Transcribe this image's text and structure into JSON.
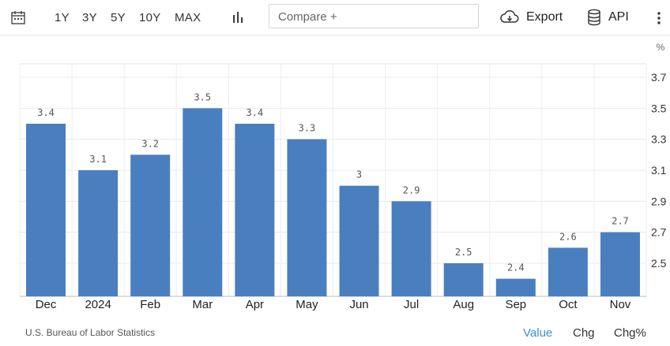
{
  "toolbar": {
    "calendar_icon": "calendar-icon",
    "ranges": [
      "1Y",
      "3Y",
      "5Y",
      "10Y",
      "MAX"
    ],
    "chart_type_icon": "bar-chart-icon",
    "compare_placeholder": "Compare +",
    "export_label": "Export",
    "export_icon": "cloud-download-icon",
    "api_label": "API",
    "api_icon": "database-icon",
    "more_icon": "kebab-menu-icon"
  },
  "chart_data": {
    "type": "bar",
    "categories": [
      "Dec",
      "2024",
      "Feb",
      "Mar",
      "Apr",
      "May",
      "Jun",
      "Jul",
      "Aug",
      "Sep",
      "Oct",
      "Nov"
    ],
    "values": [
      3.4,
      3.1,
      3.2,
      3.5,
      3.4,
      3.3,
      3,
      2.9,
      2.5,
      2.4,
      2.6,
      2.7
    ],
    "value_labels": [
      "3.4",
      "3.1",
      "3.2",
      "3.5",
      "3.4",
      "3.3",
      "3",
      "2.9",
      "2.5",
      "2.4",
      "2.6",
      "2.7"
    ],
    "y_unit": "%",
    "y_ticks": [
      "3.7",
      "3.5",
      "3.3",
      "3.1",
      "2.9",
      "2.7",
      "2.5"
    ],
    "y_tick_values": [
      3.7,
      3.5,
      3.3,
      3.1,
      2.9,
      2.7,
      2.5
    ],
    "ylim": [
      2.3,
      3.8
    ],
    "y_axis_side": "right",
    "grid": true,
    "bar_color": "#4a7fbf"
  },
  "footer": {
    "source": "U.S. Bureau of Labor Statistics",
    "modes": [
      "Value",
      "Chg",
      "Chg%"
    ],
    "active_mode": "Value"
  }
}
